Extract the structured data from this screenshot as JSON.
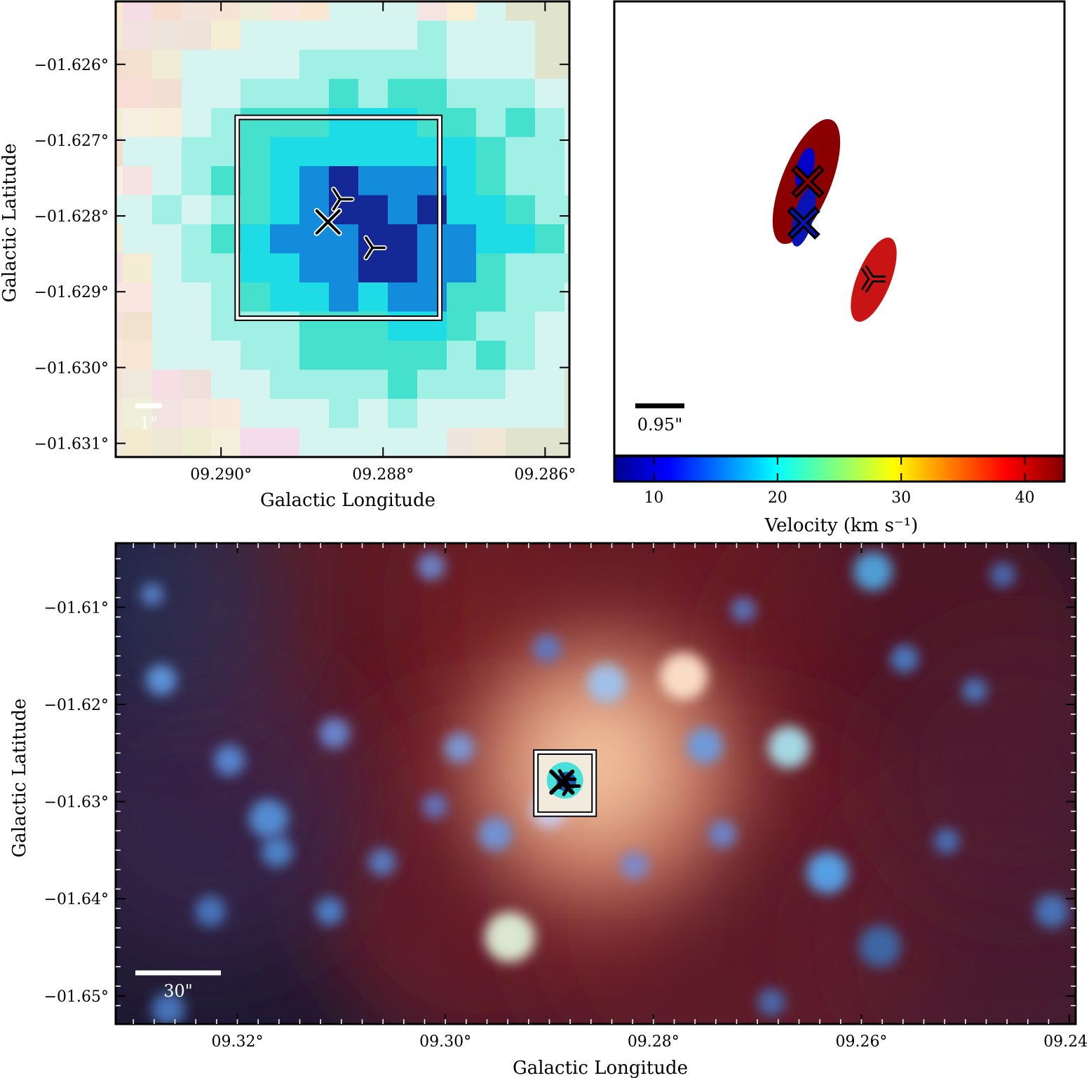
{
  "colors": {
    "background": "#ffffff",
    "frame": "#000000",
    "marker_stroke": "#000000",
    "marker_halo": "#ffffff",
    "scalebar_light": "#ffffff",
    "scalebar_dark": "#000000"
  },
  "chart_data": [
    {
      "panel": "top-left",
      "type": "heatmap",
      "description_visible": "RGB pixel image zoom with region box and source markers",
      "xlabel": "Galactic Longitude",
      "ylabel": "Galactic Latitude",
      "xlim": [
        9.2913,
        9.2857
      ],
      "ylim": [
        -1.63118,
        -1.62517
      ],
      "xticks": [
        9.29,
        9.288,
        9.286
      ],
      "xtick_labels": [
        "09.290°",
        "09.288°",
        "09.286°"
      ],
      "yticks": [
        -1.626,
        -1.627,
        -1.628,
        -1.629,
        -1.63,
        -1.631
      ],
      "ytick_labels": [
        "−01.626°",
        "−01.627°",
        "−01.628°",
        "−01.629°",
        "−01.630°",
        "−01.631°"
      ],
      "scalebar_label": "1\"",
      "region_box": {
        "l_range": [
          9.2898,
          9.2873
        ],
        "b_range": [
          -1.62935,
          -1.6267
        ]
      },
      "markers": [
        {
          "shape": "x",
          "l": 9.28868,
          "b": -1.62808
        },
        {
          "shape": "y",
          "l": 9.28853,
          "b": -1.62778
        },
        {
          "shape": "y",
          "l": 9.28813,
          "b": -1.62842
        }
      ],
      "grid": false
    },
    {
      "panel": "top-right",
      "type": "scatter",
      "description_visible": "source ellipses colored by velocity with colorbar",
      "colorbar_label": "Velocity (km s⁻¹)",
      "colorbar_ticks": [
        10,
        20,
        30,
        40
      ],
      "colorbar_tick_labels": [
        "10",
        "20",
        "30",
        "40"
      ],
      "colorbar_range": [
        6.8,
        43.2
      ],
      "scalebar_label": "0.95\"",
      "sources": [
        {
          "shape": "x",
          "velocity": 42,
          "color": "#8b0000",
          "ellipse_major_u": 5.8,
          "ellipse_minor_u": 1.6,
          "angle_deg": 22,
          "x_u": 1.8,
          "y_u": 5.3
        },
        {
          "shape": "x",
          "velocity": 8,
          "color": "#0000c8",
          "ellipse_major_u": 1.8,
          "ellipse_minor_u": 0.6,
          "angle_deg": 15,
          "x_u": 1.6,
          "y_u": 4.4
        },
        {
          "shape": "x",
          "velocity": 8,
          "color": "#0a14b4",
          "ellipse_major_u": 1.8,
          "ellipse_minor_u": 0.6,
          "angle_deg": 15,
          "x_u": 1.6,
          "y_u": 4.4
        },
        {
          "shape": "y",
          "velocity": 39,
          "color": "#c81414",
          "ellipse_major_u": 4.1,
          "ellipse_minor_u": 1.3,
          "angle_deg": 22,
          "x_u": 3.4,
          "y_u": 3.0
        }
      ],
      "grid": false
    },
    {
      "panel": "bottom",
      "type": "heatmap",
      "description_visible": "wide-field RGB image with zoom box and source markers",
      "xlabel": "Galactic Longitude",
      "ylabel": "Galactic Latitude",
      "xlim": [
        9.3317,
        9.2394
      ],
      "ylim": [
        -1.6529,
        -1.6034
      ],
      "xticks": [
        9.32,
        9.3,
        9.28,
        9.26,
        9.24
      ],
      "xtick_labels": [
        "09.32°",
        "09.30°",
        "09.28°",
        "09.26°",
        "09.24°"
      ],
      "yticks": [
        -1.61,
        -1.62,
        -1.63,
        -1.64,
        -1.65
      ],
      "ytick_labels": [
        "−01.61°",
        "−01.62°",
        "−01.63°",
        "−01.64°",
        "−01.65°"
      ],
      "scalebar_label": "30\"",
      "zoom_box": {
        "l_range": [
          9.2913,
          9.2857
        ],
        "b_range": [
          -1.6313,
          -1.6249
        ]
      },
      "markers": [
        {
          "shape": "x",
          "l": 9.2888,
          "b": -1.628
        },
        {
          "shape": "y",
          "l": 9.2885,
          "b": -1.6277
        },
        {
          "shape": "y",
          "l": 9.2881,
          "b": -1.6284
        }
      ],
      "grid": false
    }
  ]
}
